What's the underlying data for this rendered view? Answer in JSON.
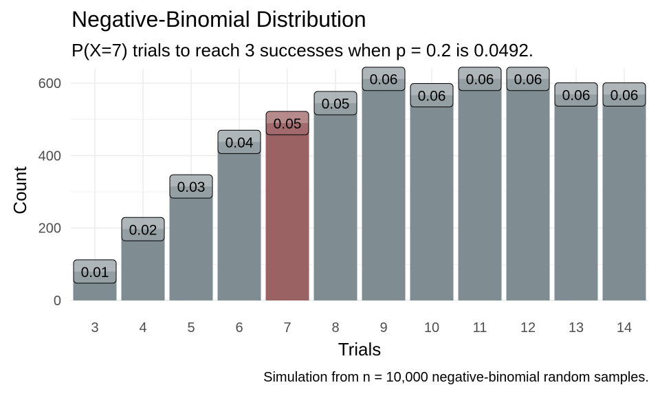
{
  "title": "Negative-Binomial Distribution",
  "subtitle": "P(X=7) trials to reach 3 successes when p = 0.2 is 0.0492.",
  "caption": "Simulation from n = 10,000 negative-binomial random samples.",
  "colors": {
    "bar": "#7f8c92",
    "highlight": "#9b6264",
    "label_fill": "#9aa4a9",
    "label_fill_highlight": "#a56d6f",
    "grid": "#ebebeb"
  },
  "chart_data": {
    "type": "bar",
    "xlabel": "Trials",
    "ylabel": "Count",
    "categories": [
      "3",
      "4",
      "5",
      "6",
      "7",
      "8",
      "9",
      "10",
      "11",
      "12",
      "13",
      "14"
    ],
    "values": [
      80,
      197,
      315,
      438,
      490,
      545,
      612,
      567,
      612,
      612,
      569,
      569
    ],
    "labels": [
      "0.01",
      "0.02",
      "0.03",
      "0.04",
      "0.05",
      "0.05",
      "0.06",
      "0.06",
      "0.06",
      "0.06",
      "0.06",
      "0.06"
    ],
    "highlight_category": "7",
    "ylim": [
      0,
      640
    ],
    "yticks": [
      0,
      200,
      400,
      600
    ],
    "grid": true,
    "legend": "none"
  }
}
